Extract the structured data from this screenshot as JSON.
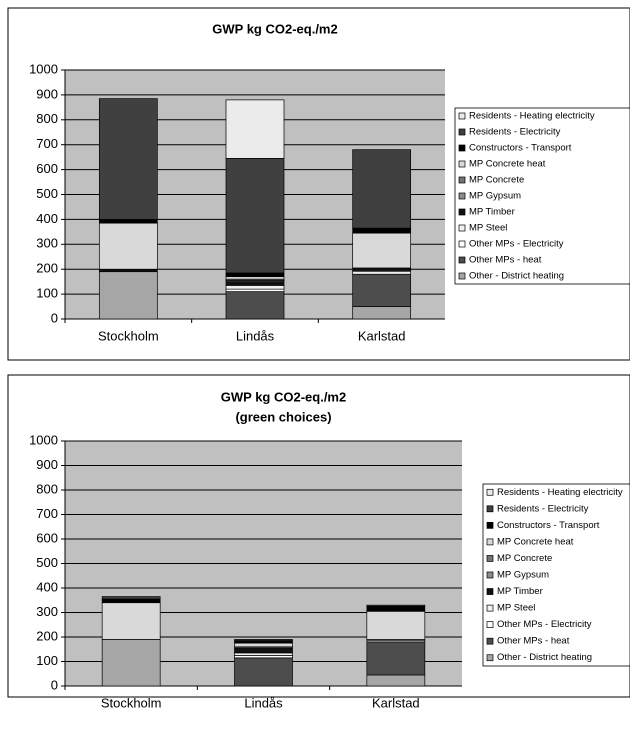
{
  "chart_data": [
    {
      "type": "bar",
      "stacked": true,
      "title": "GWP kg CO2-eq./m2",
      "categories": [
        "Stockholm",
        "Lindås",
        "Karlstad"
      ],
      "ylim": [
        0,
        1000
      ],
      "yticks": [
        0,
        100,
        200,
        300,
        400,
        500,
        600,
        700,
        800,
        900,
        1000
      ],
      "grid": true,
      "series": [
        {
          "name": "Other - District heating",
          "color": "#a6a6a6",
          "values": [
            190,
            0,
            50
          ]
        },
        {
          "name": "Other MPs - heat",
          "color": "#4d4d4d",
          "values": [
            0,
            110,
            130
          ]
        },
        {
          "name": "Other MPs - Electricity",
          "color": "#ffffff",
          "values": [
            0,
            10,
            10
          ]
        },
        {
          "name": "MP Steel",
          "color": "#f2f2f2",
          "values": [
            0,
            15,
            5
          ]
        },
        {
          "name": "MP Timber",
          "color": "#111111",
          "values": [
            10,
            15,
            10
          ]
        },
        {
          "name": "MP Gypsum",
          "color": "#8c8c8c",
          "values": [
            0,
            5,
            0
          ]
        },
        {
          "name": "MP Concrete",
          "color": "#737373",
          "values": [
            0,
            5,
            0
          ]
        },
        {
          "name": "MP Concrete heat",
          "color": "#d9d9d9",
          "values": [
            185,
            10,
            140
          ]
        },
        {
          "name": "Constructors - Transport",
          "color": "#000000",
          "values": [
            15,
            15,
            20
          ]
        },
        {
          "name": "Residents - Electricity",
          "color": "#404040",
          "values": [
            485,
            460,
            315
          ]
        },
        {
          "name": "Residents - Heating electricity",
          "color": "#ebebeb",
          "values": [
            0,
            235,
            0
          ]
        }
      ]
    },
    {
      "type": "bar",
      "stacked": true,
      "title": "GWP kg CO2-eq./m2",
      "subtitle": "(green choices)",
      "categories": [
        "Stockholm",
        "Lindås",
        "Karlstad"
      ],
      "ylim": [
        0,
        1000
      ],
      "yticks": [
        0,
        100,
        200,
        300,
        400,
        500,
        600,
        700,
        800,
        900,
        1000
      ],
      "grid": true,
      "series": [
        {
          "name": "Other - District heating",
          "color": "#a6a6a6",
          "values": [
            190,
            0,
            45
          ]
        },
        {
          "name": "Other MPs - heat",
          "color": "#4d4d4d",
          "values": [
            0,
            115,
            135
          ]
        },
        {
          "name": "Other MPs - Electricity",
          "color": "#ffffff",
          "values": [
            0,
            10,
            5
          ]
        },
        {
          "name": "MP Steel",
          "color": "#f2f2f2",
          "values": [
            0,
            10,
            5
          ]
        },
        {
          "name": "MP Timber",
          "color": "#111111",
          "values": [
            0,
            20,
            0
          ]
        },
        {
          "name": "MP Gypsum",
          "color": "#8c8c8c",
          "values": [
            0,
            0,
            0
          ]
        },
        {
          "name": "MP Concrete",
          "color": "#737373",
          "values": [
            0,
            5,
            0
          ]
        },
        {
          "name": "MP Concrete heat",
          "color": "#d9d9d9",
          "values": [
            150,
            15,
            115
          ]
        },
        {
          "name": "Constructors - Transport",
          "color": "#000000",
          "values": [
            15,
            10,
            20
          ]
        },
        {
          "name": "Residents - Electricity",
          "color": "#404040",
          "values": [
            10,
            5,
            5
          ]
        },
        {
          "name": "Residents - Heating electricity",
          "color": "#ebebeb",
          "values": [
            0,
            0,
            0
          ]
        }
      ]
    }
  ]
}
